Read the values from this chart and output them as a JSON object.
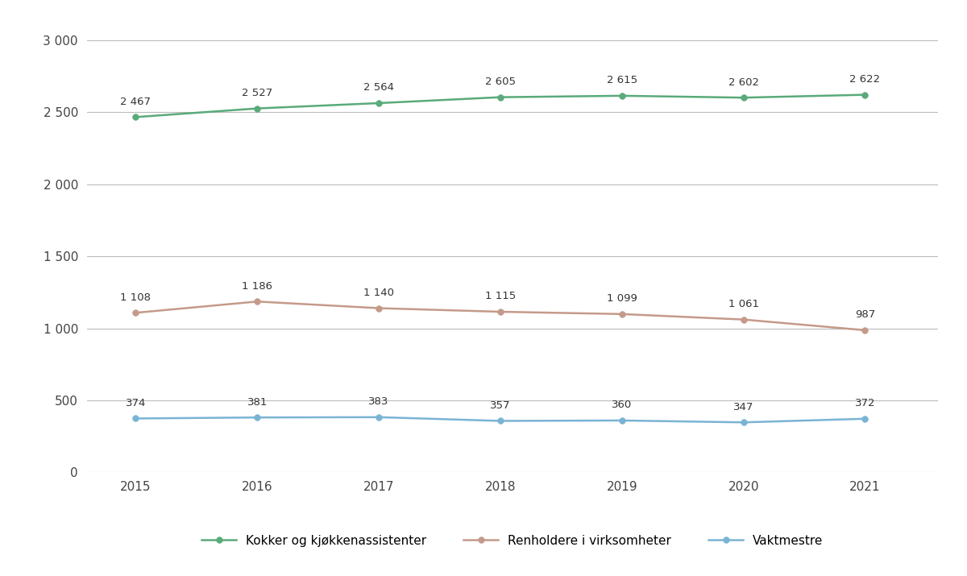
{
  "years": [
    2015,
    2016,
    2017,
    2018,
    2019,
    2020,
    2021
  ],
  "series": [
    {
      "name": "Kokker og kjøkkenassistenter",
      "values": [
        2467,
        2527,
        2564,
        2605,
        2615,
        2602,
        2622
      ],
      "color": "#5aaa7a"
    },
    {
      "name": "Renholdere i virksomheter",
      "values": [
        1108,
        1186,
        1140,
        1115,
        1099,
        1061,
        987
      ],
      "color": "#c49a8a"
    },
    {
      "name": "Vaktmestre",
      "values": [
        374,
        381,
        383,
        357,
        360,
        347,
        372
      ],
      "color": "#7ab4d4"
    }
  ],
  "ylim": [
    0,
    3000
  ],
  "yticks": [
    0,
    500,
    1000,
    1500,
    2000,
    2500,
    3000
  ],
  "ytick_labels": [
    "0",
    "500",
    "1 000",
    "1 500",
    "2 000",
    "2 500",
    "3 000"
  ],
  "background_color": "#ffffff",
  "grid_color": "#bbbbbb",
  "figsize": [
    12.0,
    7.15
  ],
  "dpi": 100
}
